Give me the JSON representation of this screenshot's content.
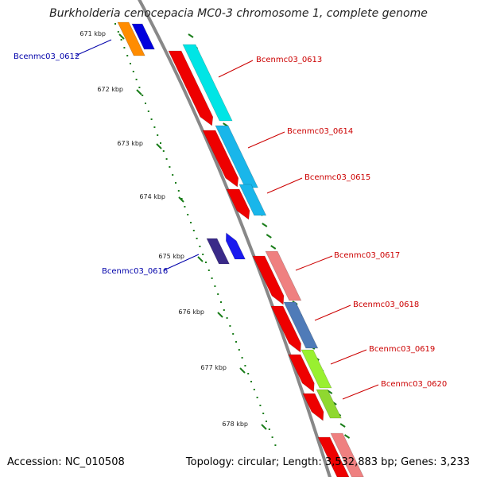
{
  "title": "Burkholderia cenocepacia MC0-3 chromosome 1, complete genome",
  "footer": {
    "accession": "Accession: NC_010508",
    "summary": "Topology: circular; Length: 3,532,883 bp; Genes: 3,233"
  },
  "colors": {
    "backbone": "#888888",
    "tick": "#1a7d1a",
    "reverse_label": "#cc0000",
    "forward_label": "#0000aa"
  },
  "ticks": [
    "671 kbp",
    "672 kbp",
    "673 kbp",
    "674 kbp",
    "675 kbp",
    "676 kbp",
    "677 kbp",
    "678 kbp"
  ],
  "genes": [
    {
      "name": "Bcenmc03_0612",
      "strand": "forward",
      "color": "forward_label"
    },
    {
      "name": "Bcenmc03_0613",
      "strand": "reverse",
      "color": "reverse_label"
    },
    {
      "name": "Bcenmc03_0614",
      "strand": "reverse",
      "color": "reverse_label"
    },
    {
      "name": "Bcenmc03_0615",
      "strand": "reverse",
      "color": "reverse_label"
    },
    {
      "name": "Bcenmc03_0616",
      "strand": "forward",
      "color": "forward_label"
    },
    {
      "name": "Bcenmc03_0617",
      "strand": "reverse",
      "color": "reverse_label"
    },
    {
      "name": "Bcenmc03_0618",
      "strand": "reverse",
      "color": "reverse_label"
    },
    {
      "name": "Bcenmc03_0619",
      "strand": "reverse",
      "color": "reverse_label"
    },
    {
      "name": "Bcenmc03_0620",
      "strand": "reverse",
      "color": "reverse_label"
    }
  ]
}
